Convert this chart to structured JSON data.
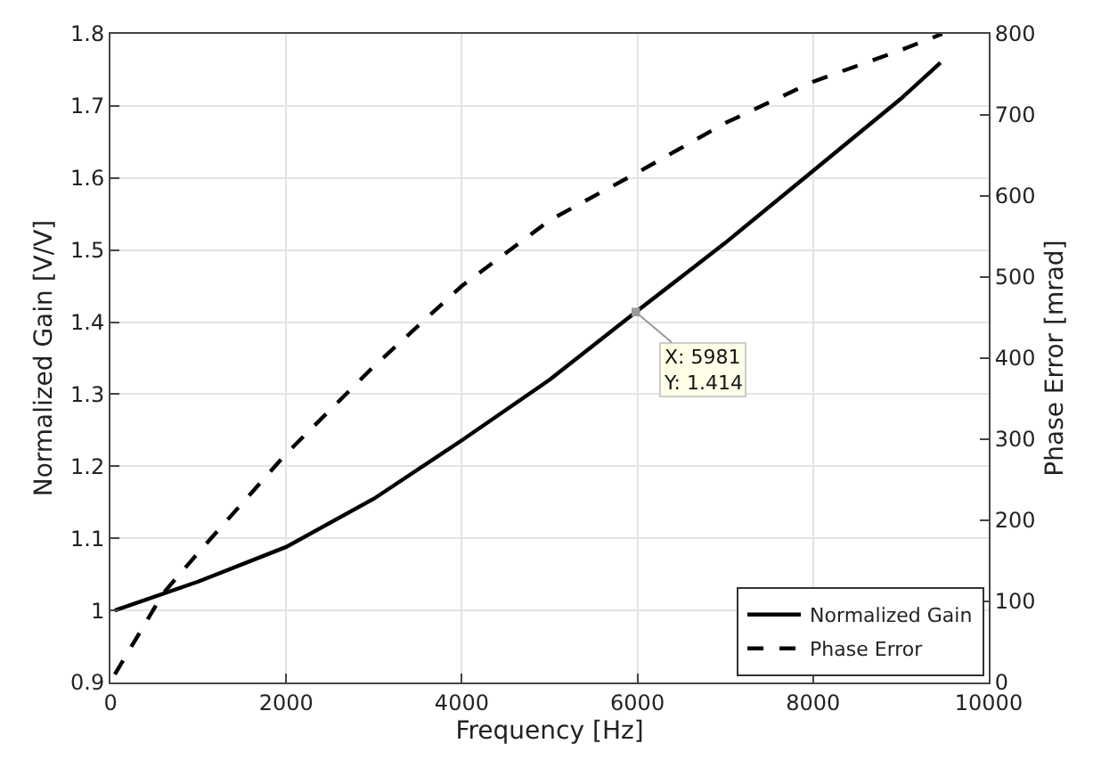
{
  "chart_data": {
    "type": "line",
    "xlabel": "Frequency [Hz]",
    "ylabel": "Normalized Gain [V/V]",
    "y2label": "Phase Error [mrad]",
    "xlim": [
      0,
      10000
    ],
    "xticks": [
      0,
      2000,
      4000,
      6000,
      8000,
      10000
    ],
    "ylim": [
      0.9,
      1.8
    ],
    "yticks": [
      0.9,
      1,
      1.1,
      1.2,
      1.3,
      1.4,
      1.5,
      1.6,
      1.7,
      1.8
    ],
    "y2lim": [
      0,
      800
    ],
    "y2ticks": [
      0,
      100,
      200,
      300,
      400,
      500,
      600,
      700,
      800
    ],
    "grid": true,
    "legend": "bottom right",
    "marker": "none",
    "series": [
      {
        "name": "Normalized Gain",
        "color": "#000000",
        "line_style": "solid",
        "x": [
          50,
          1000,
          2000,
          3000,
          4000,
          5000,
          5981,
          7000,
          8000,
          9000,
          9450
        ],
        "values": [
          1.0,
          1.04,
          1.088,
          1.155,
          1.236,
          1.32,
          1.414,
          1.51,
          1.61,
          1.71,
          1.76
        ]
      },
      {
        "name": "Phase Error",
        "color": "#000000",
        "line_style": "dashed",
        "axis": "y2",
        "x": [
          50,
          600,
          1000,
          2000,
          3000,
          4000,
          5000,
          6000,
          7000,
          8000,
          9000,
          9470
        ],
        "values": [
          10,
          110,
          160,
          282,
          390,
          489,
          570,
          629,
          690,
          741,
          780,
          800
        ]
      }
    ],
    "annotations": [
      {
        "text": "X: 5981\nY: 1.414",
        "x": 5981,
        "y": 1.414
      }
    ]
  }
}
